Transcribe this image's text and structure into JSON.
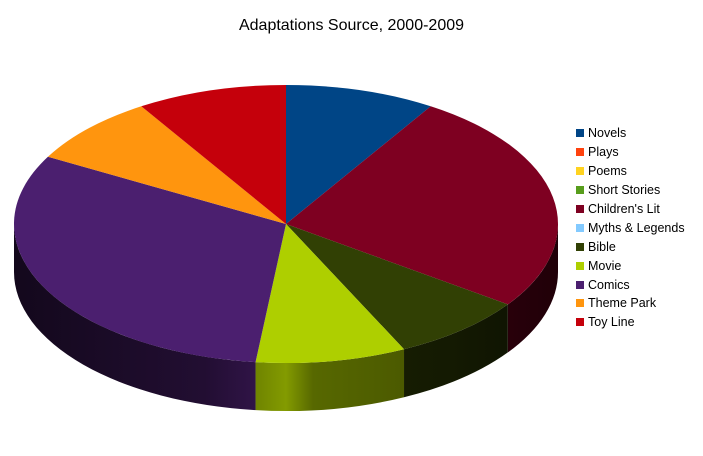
{
  "chart_data": {
    "type": "pie",
    "title": "Adaptations Source, 2000-2009",
    "categories": [
      "Novels",
      "Plays",
      "Poems",
      "Short Stories",
      "Children's Lit",
      "Myths & Legends",
      "Bible",
      "Movie",
      "Comics",
      "Theme Park",
      "Toy Line"
    ],
    "values": [
      10,
      0,
      0,
      0,
      29,
      0,
      9,
      10,
      35,
      9,
      10
    ],
    "colors": [
      "#004586",
      "#ff420e",
      "#ffd320",
      "#579d1c",
      "#7e0021",
      "#83caff",
      "#314004",
      "#aecf00",
      "#4b1f6f",
      "#ff950e",
      "#c5000b"
    ],
    "legend_position": "right",
    "three_d": true
  }
}
